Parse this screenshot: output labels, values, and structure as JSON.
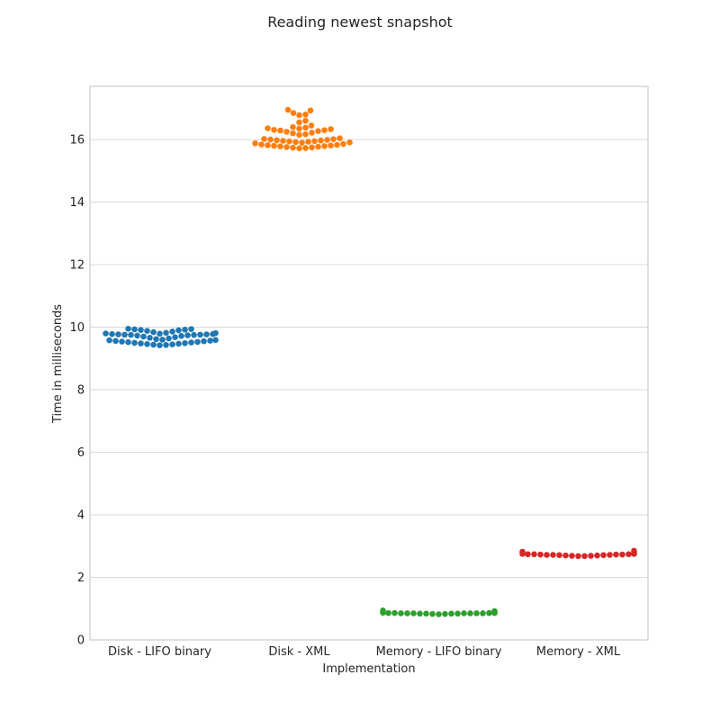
{
  "chart_data": {
    "type": "scatter",
    "subtype": "swarm",
    "title": "Reading newest snapshot",
    "xlabel": "Implementation",
    "ylabel": "Time in milliseconds",
    "ylim": [
      0,
      17.7
    ],
    "yticks": [
      0,
      2,
      4,
      6,
      8,
      10,
      12,
      14,
      16
    ],
    "grid": "horizontal",
    "categories": [
      "Disk - LIFO binary",
      "Disk - XML",
      "Memory - LIFO binary",
      "Memory - XML"
    ],
    "series": [
      {
        "category": "Disk - LIFO binary",
        "color": "#1f77b4",
        "values": [
          9.42,
          9.43,
          9.44,
          9.45,
          9.46,
          9.47,
          9.48,
          9.49,
          9.5,
          9.51,
          9.52,
          9.53,
          9.54,
          9.55,
          9.56,
          9.57,
          9.58,
          9.59,
          9.6,
          9.62,
          9.64,
          9.66,
          9.68,
          9.7,
          9.72,
          9.73,
          9.74,
          9.75,
          9.75,
          9.76,
          9.76,
          9.77,
          9.77,
          9.78,
          9.78,
          9.79,
          9.8,
          9.81,
          9.82,
          9.84,
          9.86,
          9.88,
          9.9,
          9.91,
          9.92,
          9.93,
          9.94,
          9.95
        ]
      },
      {
        "category": "Disk - XML",
        "color": "#ff7f0e",
        "values": [
          15.72,
          15.73,
          15.74,
          15.75,
          15.76,
          15.77,
          15.78,
          15.79,
          15.8,
          15.81,
          15.82,
          15.83,
          15.84,
          15.86,
          15.88,
          15.9,
          15.91,
          15.92,
          15.93,
          15.94,
          15.95,
          15.96,
          15.97,
          15.98,
          15.99,
          16.0,
          16.01,
          16.02,
          16.04,
          16.15,
          16.17,
          16.2,
          16.22,
          16.25,
          16.27,
          16.29,
          16.3,
          16.31,
          16.33,
          16.35,
          16.36,
          16.38,
          16.4,
          16.45,
          16.55,
          16.6,
          16.78,
          16.8,
          16.85,
          16.93,
          16.95
        ]
      },
      {
        "category": "Memory - LIFO binary",
        "color": "#2ca02c",
        "values": [
          0.82,
          0.83,
          0.83,
          0.84,
          0.84,
          0.84,
          0.84,
          0.85,
          0.85,
          0.85,
          0.85,
          0.85,
          0.85,
          0.85,
          0.86,
          0.86,
          0.86,
          0.86,
          0.87,
          0.87,
          0.88,
          0.9,
          0.92,
          0.94
        ]
      },
      {
        "category": "Memory - XML",
        "color": "#d62728",
        "values": [
          2.68,
          2.68,
          2.69,
          2.69,
          2.7,
          2.7,
          2.71,
          2.71,
          2.72,
          2.72,
          2.72,
          2.73,
          2.73,
          2.73,
          2.74,
          2.74,
          2.74,
          2.75,
          2.75,
          2.76,
          2.78,
          2.82,
          2.85
        ]
      }
    ]
  }
}
